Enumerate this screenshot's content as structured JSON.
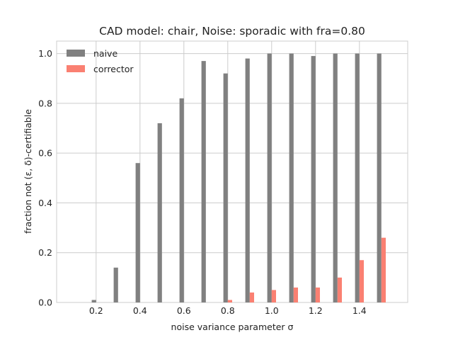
{
  "chart_data": {
    "type": "bar",
    "title": "CAD model: chair, Noise: sporadic with fra=0.80",
    "xlabel": "noise variance parameter σ",
    "ylabel": "fraction not (ε, δ)-certifiable",
    "x": [
      0.1,
      0.2,
      0.3,
      0.4,
      0.5,
      0.6,
      0.7,
      0.8,
      0.9,
      1.0,
      1.1,
      1.2,
      1.3,
      1.4,
      1.5
    ],
    "series": [
      {
        "name": "naive",
        "color": "#808080",
        "values": [
          0.0,
          0.01,
          0.14,
          0.56,
          0.72,
          0.82,
          0.97,
          0.92,
          0.98,
          1.0,
          1.0,
          0.99,
          1.0,
          1.0,
          1.0
        ]
      },
      {
        "name": "corrector",
        "color": "#fa8072",
        "values": [
          0.0,
          0.0,
          0.0,
          0.0,
          0.0,
          0.0,
          0.0,
          0.01,
          0.04,
          0.05,
          0.06,
          0.06,
          0.1,
          0.17,
          0.26
        ]
      }
    ],
    "xlim": [
      0.02,
      1.62
    ],
    "ylim": [
      0.0,
      1.05
    ],
    "xticks": [
      "0.2",
      "0.4",
      "0.6",
      "0.8",
      "1.0",
      "1.2",
      "1.4"
    ],
    "yticks": [
      "0.0",
      "0.2",
      "0.4",
      "0.6",
      "0.8",
      "1.0"
    ],
    "grid": true,
    "legend_position": "top-left"
  }
}
